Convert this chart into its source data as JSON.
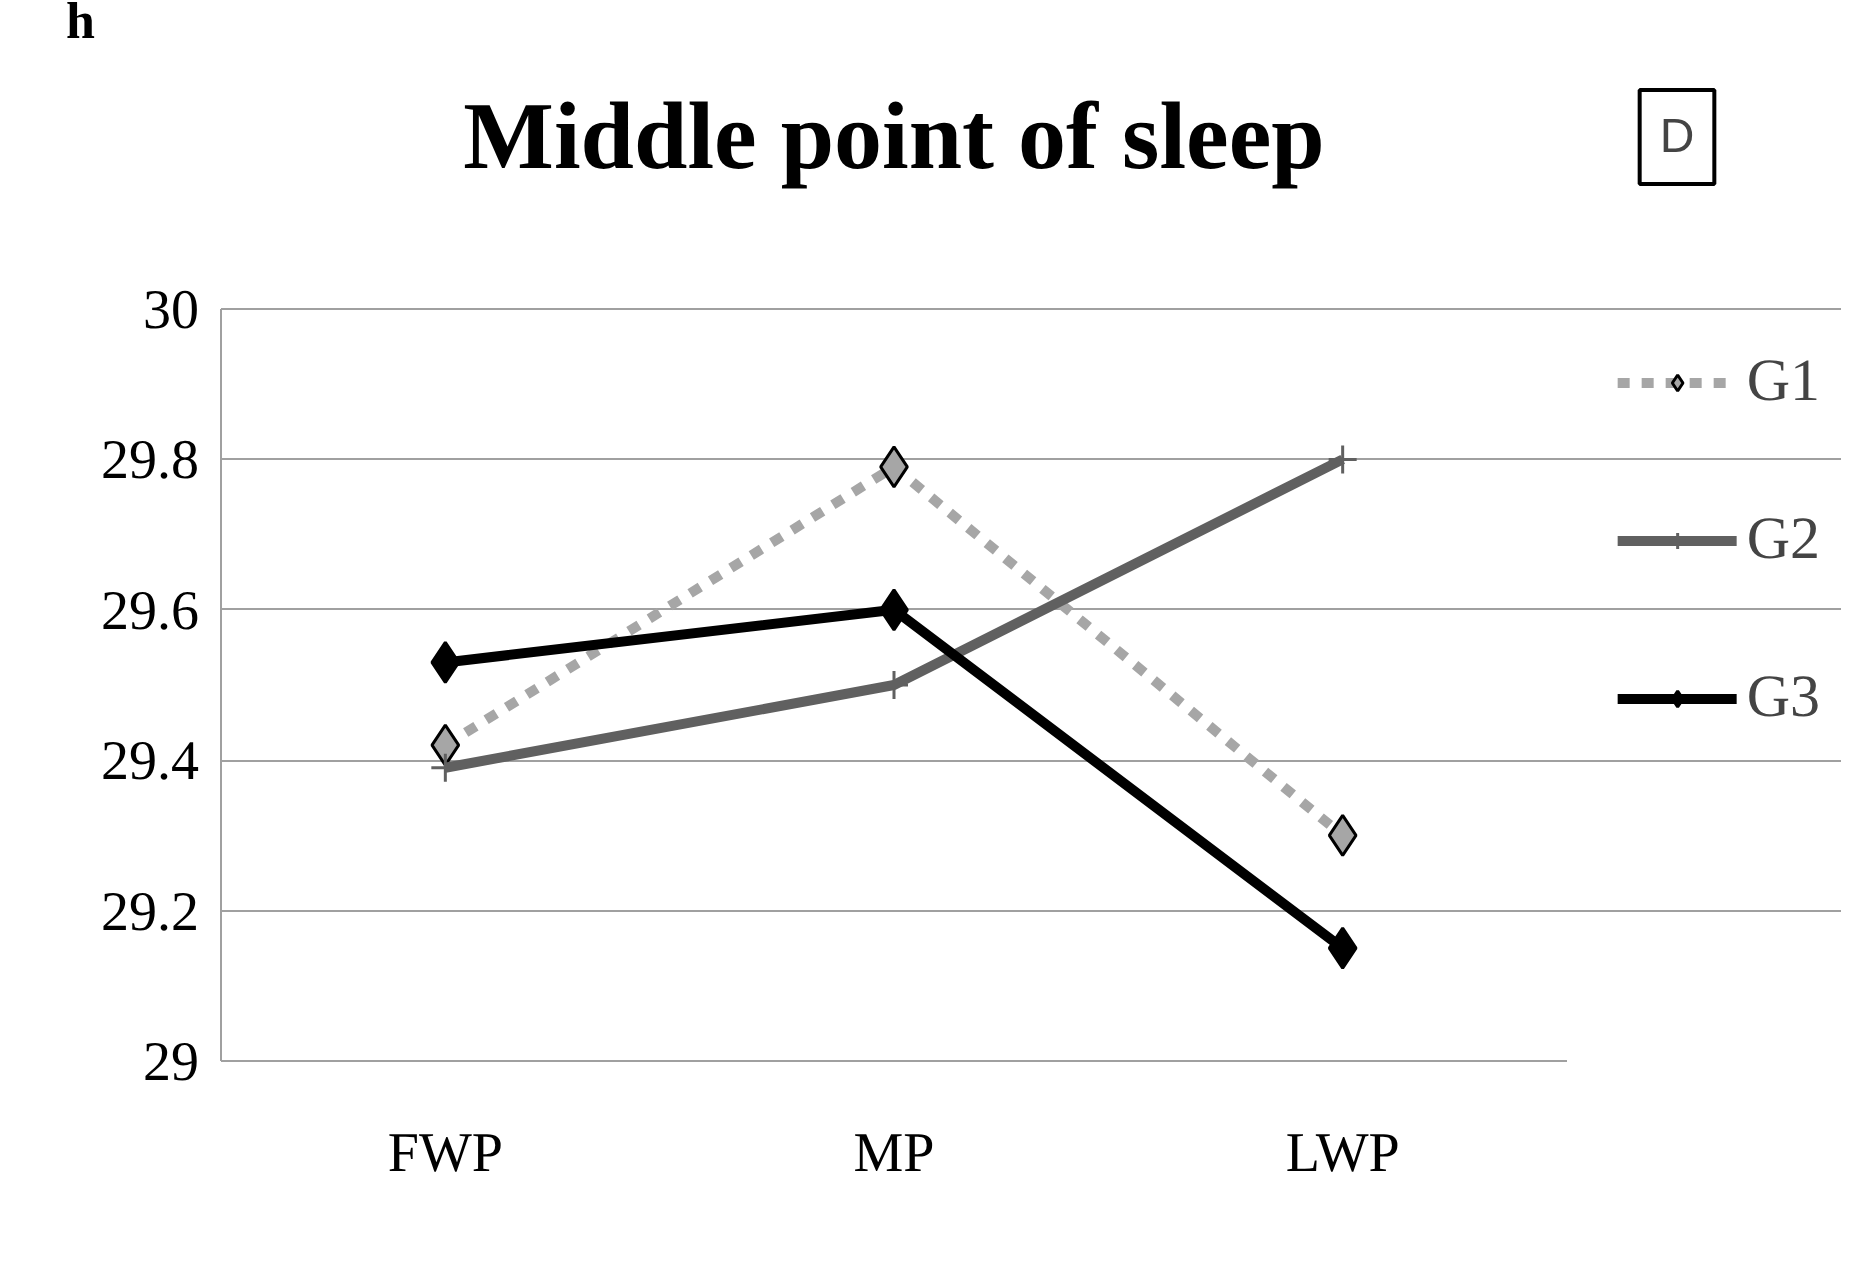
{
  "chart_data": {
    "type": "line",
    "title": "Middle point of sleep",
    "ylabel": "h",
    "annotations": [
      "D"
    ],
    "categories": [
      "FWP",
      "MP",
      "LWP"
    ],
    "series": [
      {
        "name": "G1",
        "color": "#a6a6a6",
        "line_style": "dashed",
        "marker": "diamond",
        "values": [
          29.42,
          29.79,
          29.3
        ]
      },
      {
        "name": "G2",
        "color": "#606060",
        "line_style": "solid",
        "marker": "cross",
        "values": [
          29.39,
          29.5,
          29.8
        ]
      },
      {
        "name": "G3",
        "color": "#000000",
        "line_style": "solid",
        "marker": "diamond",
        "values": [
          29.53,
          29.6,
          29.15
        ]
      }
    ],
    "ylim": [
      29,
      30
    ],
    "yticks": [
      29,
      29.2,
      29.4,
      29.6,
      29.8,
      30
    ],
    "grid": "y",
    "legend": "right"
  }
}
